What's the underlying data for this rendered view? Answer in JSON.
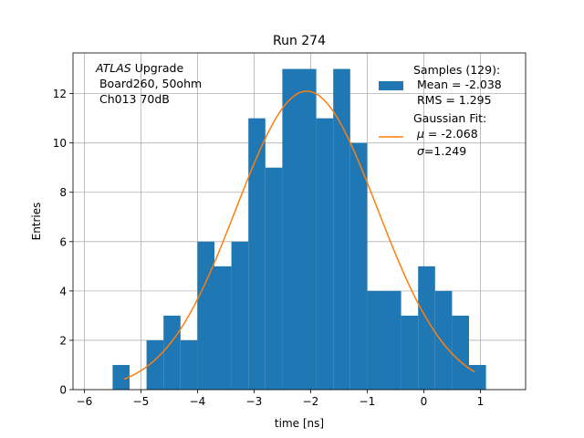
{
  "chart_data": {
    "type": "bar",
    "title": "Run 274",
    "xlabel": "time [ns]",
    "ylabel": "Entries",
    "xlim": [
      -6.2,
      1.8
    ],
    "ylim": [
      0,
      13.65
    ],
    "xticks": [
      -6,
      -5,
      -4,
      -3,
      -2,
      -1,
      0,
      1
    ],
    "xtick_labels": [
      "−6",
      "−5",
      "−4",
      "−3",
      "−2",
      "−1",
      "0",
      "1"
    ],
    "yticks": [
      0,
      2,
      4,
      6,
      8,
      10,
      12
    ],
    "ytick_labels": [
      "0",
      "2",
      "4",
      "6",
      "8",
      "10",
      "12"
    ],
    "grid": true,
    "legend_position": "top-right",
    "colors": {
      "histogram": "#1f77b4",
      "fit": "#ff7f0e",
      "grid": "#b0b0b0"
    },
    "annotation": {
      "line1_italic": "ATLAS",
      "line1_rest": " Upgrade",
      "line2": " Board260, 50ohm",
      "line3": " Ch013 70dB"
    },
    "legend": {
      "samples": {
        "line1": "Samples (129):",
        "line2": " Mean = -2.038",
        "line3": " RMS = 1.295"
      },
      "fit": {
        "line1": "Gaussian Fit:",
        "mu_symbol": "μ",
        "mu_text": " = -2.068",
        "sigma_symbol": "σ",
        "sigma_text": "=1.249"
      }
    },
    "histogram": {
      "bin_edges": [
        -5.5,
        -5.2,
        -4.9,
        -4.6,
        -4.3,
        -4.0,
        -3.7,
        -3.4,
        -3.1,
        -2.8,
        -2.5,
        -2.2,
        -1.9,
        -1.6,
        -1.3,
        -1.0,
        -0.7,
        -0.4,
        -0.1,
        0.2,
        0.5,
        0.8,
        1.1
      ],
      "counts": [
        1,
        0,
        2,
        3,
        2,
        6,
        5,
        6,
        11,
        9,
        13,
        13,
        11,
        13,
        10,
        4,
        4,
        3,
        5,
        4,
        3,
        1
      ]
    },
    "fit": {
      "mu": -2.068,
      "sigma": 1.249,
      "amplitude": 12.1,
      "x_range": [
        -5.3,
        0.9
      ]
    }
  }
}
